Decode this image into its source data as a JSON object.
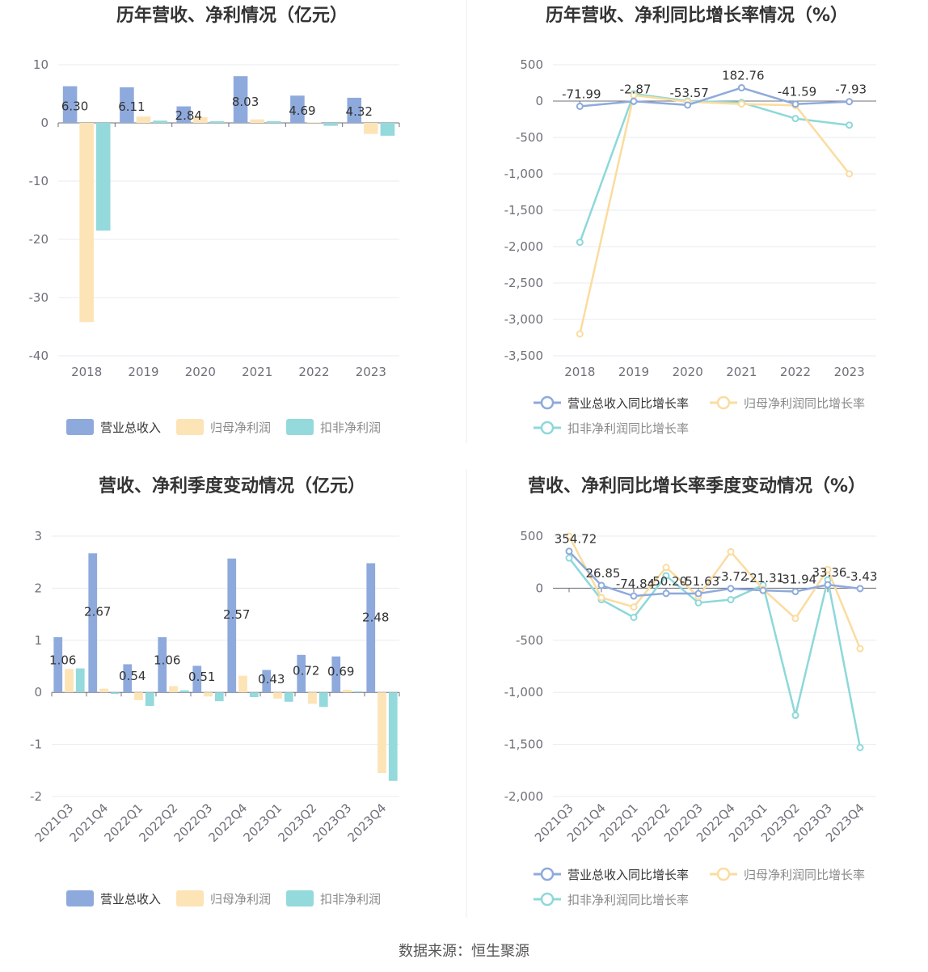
{
  "source": "数据来源：恒生聚源",
  "colors": {
    "revenue": "#8eaadc",
    "parent_np": "#fde4b6",
    "deducted_np": "#94d9dc",
    "revenue_line": "#8eaadc",
    "parent_line": "#fbdc9f",
    "deducted_line": "#8ed8d9",
    "grid": "#e9ebf0",
    "axis": "#6e7079"
  },
  "chart_data": [
    {
      "id": "annual-amount",
      "type": "bar",
      "title": "历年营收、净利情况（亿元）",
      "categories": [
        "2018",
        "2019",
        "2020",
        "2021",
        "2022",
        "2023"
      ],
      "ylim": [
        -40,
        10
      ],
      "yticks": [
        10,
        0,
        -10,
        -20,
        -30,
        -40
      ],
      "series": [
        {
          "name": "营业总收入",
          "values": [
            6.3,
            6.11,
            2.84,
            8.03,
            4.69,
            4.32
          ],
          "labels": [
            "6.30",
            "6.11",
            "2.84",
            "8.03",
            "4.69",
            "4.32"
          ]
        },
        {
          "name": "归母净利润",
          "values": [
            -34.2,
            1.1,
            1.0,
            0.6,
            0.1,
            -1.9
          ]
        },
        {
          "name": "扣非净利润",
          "values": [
            -18.5,
            0.4,
            0.3,
            0.3,
            -0.5,
            -2.2
          ]
        }
      ],
      "legend": "bottom"
    },
    {
      "id": "annual-growth",
      "type": "line",
      "title": "历年营收、净利同比增长率情况（%）",
      "categories": [
        "2018",
        "2019",
        "2020",
        "2021",
        "2022",
        "2023"
      ],
      "ylim": [
        -3500,
        500
      ],
      "yticks": [
        500,
        0,
        -500,
        -1000,
        -1500,
        -2000,
        -2500,
        -3000,
        -3500
      ],
      "ytick_labels": [
        "500",
        "0",
        "-500",
        "-1,000",
        "-1,500",
        "-2,000",
        "-2,500",
        "-3,000",
        "-3,500"
      ],
      "series": [
        {
          "name": "营业总收入同比增长率",
          "values": [
            -71.99,
            -2.87,
            -53.57,
            182.76,
            -41.59,
            -7.93
          ],
          "labels": [
            "-71.99",
            "-2.87",
            "-53.57",
            "182.76",
            "-41.59",
            "-7.93"
          ]
        },
        {
          "name": "归母净利润同比增长率",
          "values": [
            -3200,
            80,
            -10,
            -40,
            -60,
            -1000
          ]
        },
        {
          "name": "扣非净利润同比增长率",
          "values": [
            -1940,
            100,
            0,
            -20,
            -240,
            -330
          ]
        }
      ],
      "legend": "bottom"
    },
    {
      "id": "quarterly-amount",
      "type": "bar",
      "title": "营收、净利季度变动情况（亿元）",
      "categories": [
        "2021Q3",
        "2021Q4",
        "2022Q1",
        "2022Q2",
        "2022Q3",
        "2022Q4",
        "2023Q1",
        "2023Q2",
        "2023Q3",
        "2023Q4"
      ],
      "ylim": [
        -2,
        3
      ],
      "yticks": [
        3,
        2,
        1,
        0,
        -1,
        -2
      ],
      "series": [
        {
          "name": "营业总收入",
          "values": [
            1.06,
            2.67,
            0.54,
            1.06,
            0.51,
            2.57,
            0.43,
            0.72,
            0.69,
            2.48
          ],
          "labels": [
            "1.06",
            "2.67",
            "0.54",
            "1.06",
            "0.51",
            "2.57",
            "0.43",
            "0.72",
            "0.69",
            "2.48"
          ]
        },
        {
          "name": "归母净利润",
          "values": [
            0.45,
            0.07,
            -0.15,
            0.12,
            -0.08,
            0.32,
            -0.12,
            -0.22,
            0.05,
            -1.55
          ]
        },
        {
          "name": "扣非净利润",
          "values": [
            0.46,
            -0.03,
            -0.26,
            0.04,
            -0.17,
            -0.09,
            -0.18,
            -0.28,
            0.02,
            -1.7
          ]
        }
      ],
      "legend": "bottom"
    },
    {
      "id": "quarterly-growth",
      "type": "line",
      "title": "营收、净利同比增长率季度变动情况（%）",
      "categories": [
        "2021Q3",
        "2021Q4",
        "2022Q1",
        "2022Q2",
        "2022Q3",
        "2022Q4",
        "2023Q1",
        "2023Q2",
        "2023Q3",
        "2023Q4"
      ],
      "ylim": [
        -2000,
        500
      ],
      "yticks": [
        500,
        0,
        -500,
        -1000,
        -1500,
        -2000
      ],
      "ytick_labels": [
        "500",
        "0",
        "-500",
        "-1,000",
        "-1,500",
        "-2,000"
      ],
      "series": [
        {
          "name": "营业总收入同比增长率",
          "values": [
            354.72,
            26.85,
            -74.84,
            -50.2,
            -51.63,
            -3.72,
            -21.31,
            -31.94,
            33.36,
            -3.43
          ],
          "labels": [
            "354.72",
            "26.85",
            "-74.84",
            "-50.20",
            "-51.63",
            "-3.72",
            "-21.31",
            "-31.94",
            "33.36",
            "-3.43"
          ]
        },
        {
          "name": "归母净利润同比增长率",
          "values": [
            500,
            -90,
            -180,
            200,
            -80,
            350,
            -10,
            -290,
            180,
            -580
          ]
        },
        {
          "name": "扣非净利润同比增长率",
          "values": [
            290,
            -110,
            -280,
            120,
            -140,
            -110,
            30,
            -1220,
            80,
            -1530
          ]
        }
      ],
      "legend": "bottom"
    }
  ]
}
